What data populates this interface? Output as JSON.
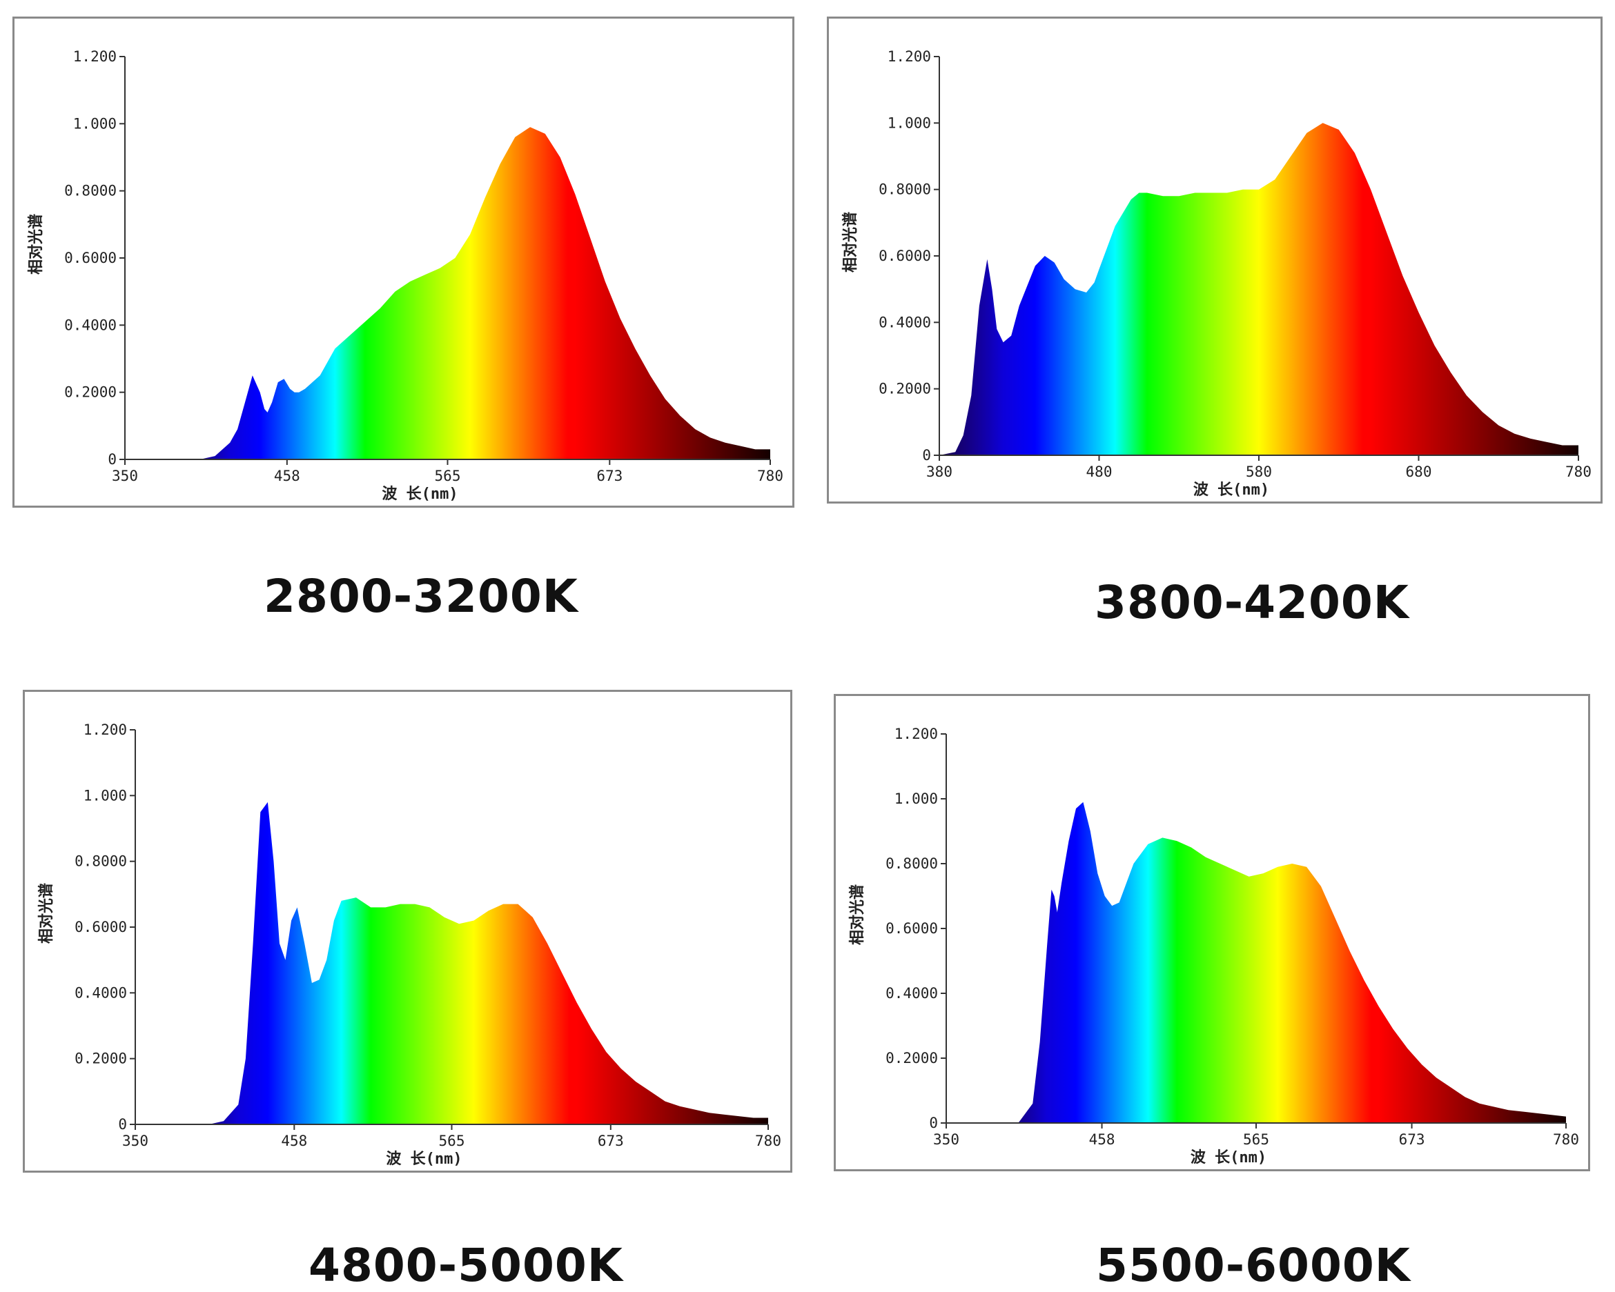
{
  "chart_data": [
    {
      "type": "area",
      "ylabel": "相对光谱",
      "xlabel": "波 长(nm)",
      "x_ticks": [
        "350",
        "458",
        "565",
        "673",
        "780"
      ],
      "y_ticks": [
        "0",
        "0.2000",
        "0.4000",
        "0.6000",
        "0.8000",
        "1.000",
        "1.200"
      ],
      "xlim": [
        350,
        780
      ],
      "ylim": [
        0,
        1.2
      ],
      "gradient_fill": true,
      "x": [
        350,
        400,
        410,
        420,
        425,
        430,
        435,
        440,
        443,
        445,
        448,
        452,
        456,
        460,
        463,
        466,
        470,
        480,
        490,
        500,
        510,
        520,
        530,
        540,
        550,
        560,
        570,
        580,
        590,
        600,
        610,
        620,
        630,
        640,
        650,
        660,
        670,
        680,
        690,
        700,
        710,
        720,
        730,
        740,
        750,
        760,
        770,
        780
      ],
      "y": [
        0,
        0,
        0.01,
        0.05,
        0.09,
        0.17,
        0.25,
        0.2,
        0.15,
        0.14,
        0.17,
        0.23,
        0.24,
        0.21,
        0.2,
        0.2,
        0.21,
        0.25,
        0.33,
        0.37,
        0.41,
        0.45,
        0.5,
        0.53,
        0.55,
        0.57,
        0.6,
        0.67,
        0.78,
        0.88,
        0.96,
        0.99,
        0.97,
        0.9,
        0.79,
        0.66,
        0.53,
        0.42,
        0.33,
        0.25,
        0.18,
        0.13,
        0.09,
        0.065,
        0.05,
        0.04,
        0.03,
        0.03
      ]
    },
    {
      "type": "area",
      "ylabel": "相对光谱",
      "xlabel": "波 长(nm)",
      "x_ticks": [
        "380",
        "480",
        "580",
        "680",
        "780"
      ],
      "y_ticks": [
        "0",
        "0.2000",
        "0.4000",
        "0.6000",
        "0.8000",
        "1.000",
        "1.200"
      ],
      "xlim": [
        380,
        780
      ],
      "ylim": [
        0,
        1.2
      ],
      "gradient_fill": true,
      "x": [
        380,
        390,
        395,
        400,
        405,
        410,
        413,
        416,
        420,
        425,
        430,
        440,
        446,
        452,
        458,
        465,
        472,
        477,
        480,
        490,
        500,
        505,
        510,
        520,
        530,
        540,
        550,
        560,
        570,
        580,
        590,
        600,
        610,
        620,
        630,
        640,
        650,
        660,
        670,
        680,
        690,
        700,
        710,
        720,
        730,
        740,
        750,
        760,
        770,
        780
      ],
      "y": [
        0,
        0.01,
        0.06,
        0.18,
        0.45,
        0.59,
        0.5,
        0.38,
        0.34,
        0.36,
        0.45,
        0.57,
        0.6,
        0.58,
        0.53,
        0.5,
        0.49,
        0.52,
        0.56,
        0.69,
        0.77,
        0.79,
        0.79,
        0.78,
        0.78,
        0.79,
        0.79,
        0.79,
        0.8,
        0.8,
        0.83,
        0.9,
        0.97,
        1.0,
        0.98,
        0.91,
        0.8,
        0.67,
        0.54,
        0.43,
        0.33,
        0.25,
        0.18,
        0.13,
        0.09,
        0.065,
        0.05,
        0.04,
        0.03,
        0.03
      ]
    },
    {
      "type": "area",
      "ylabel": "相对光谱",
      "xlabel": "波 长(nm)",
      "x_ticks": [
        "350",
        "458",
        "565",
        "673",
        "780"
      ],
      "y_ticks": [
        "0",
        "0.2000",
        "0.4000",
        "0.6000",
        "0.8000",
        "1.000",
        "1.200"
      ],
      "xlim": [
        350,
        780
      ],
      "ylim": [
        0,
        1.2
      ],
      "gradient_fill": true,
      "x": [
        350,
        400,
        410,
        420,
        425,
        430,
        435,
        440,
        444,
        448,
        452,
        456,
        460,
        465,
        470,
        475,
        480,
        485,
        490,
        500,
        510,
        520,
        530,
        540,
        550,
        560,
        570,
        580,
        590,
        600,
        610,
        620,
        630,
        640,
        650,
        660,
        670,
        680,
        690,
        700,
        710,
        720,
        730,
        740,
        750,
        760,
        770,
        780
      ],
      "y": [
        0,
        0,
        0.01,
        0.06,
        0.2,
        0.55,
        0.95,
        0.98,
        0.8,
        0.55,
        0.5,
        0.62,
        0.66,
        0.55,
        0.43,
        0.44,
        0.5,
        0.62,
        0.68,
        0.69,
        0.66,
        0.66,
        0.67,
        0.67,
        0.66,
        0.63,
        0.61,
        0.62,
        0.65,
        0.67,
        0.67,
        0.63,
        0.55,
        0.46,
        0.37,
        0.29,
        0.22,
        0.17,
        0.13,
        0.1,
        0.07,
        0.055,
        0.045,
        0.035,
        0.03,
        0.025,
        0.02,
        0.02
      ]
    },
    {
      "type": "area",
      "ylabel": "相对光谱",
      "xlabel": "波 长(nm)",
      "x_ticks": [
        "350",
        "458",
        "565",
        "673",
        "780"
      ],
      "y_ticks": [
        "0",
        "0.2000",
        "0.4000",
        "0.6000",
        "0.8000",
        "1.000",
        "1.200"
      ],
      "xlim": [
        350,
        780
      ],
      "ylim": [
        0,
        1.2
      ],
      "gradient_fill": true,
      "x": [
        350,
        400,
        410,
        415,
        420,
        423,
        425,
        427,
        430,
        435,
        440,
        445,
        450,
        455,
        460,
        465,
        470,
        475,
        480,
        490,
        500,
        510,
        520,
        530,
        540,
        550,
        560,
        570,
        580,
        590,
        600,
        610,
        620,
        630,
        640,
        650,
        660,
        670,
        680,
        690,
        700,
        710,
        720,
        730,
        740,
        750,
        760,
        770,
        780
      ],
      "y": [
        0,
        0,
        0.06,
        0.25,
        0.55,
        0.72,
        0.7,
        0.65,
        0.74,
        0.87,
        0.97,
        0.99,
        0.9,
        0.77,
        0.7,
        0.67,
        0.68,
        0.74,
        0.8,
        0.86,
        0.88,
        0.87,
        0.85,
        0.82,
        0.8,
        0.78,
        0.76,
        0.77,
        0.79,
        0.8,
        0.79,
        0.73,
        0.63,
        0.53,
        0.44,
        0.36,
        0.29,
        0.23,
        0.18,
        0.14,
        0.11,
        0.08,
        0.06,
        0.05,
        0.04,
        0.035,
        0.03,
        0.025,
        0.02
      ]
    }
  ],
  "captions": [
    "2800-3200K",
    "3800-4200K",
    "4800-5000K",
    "5500-6000K"
  ]
}
